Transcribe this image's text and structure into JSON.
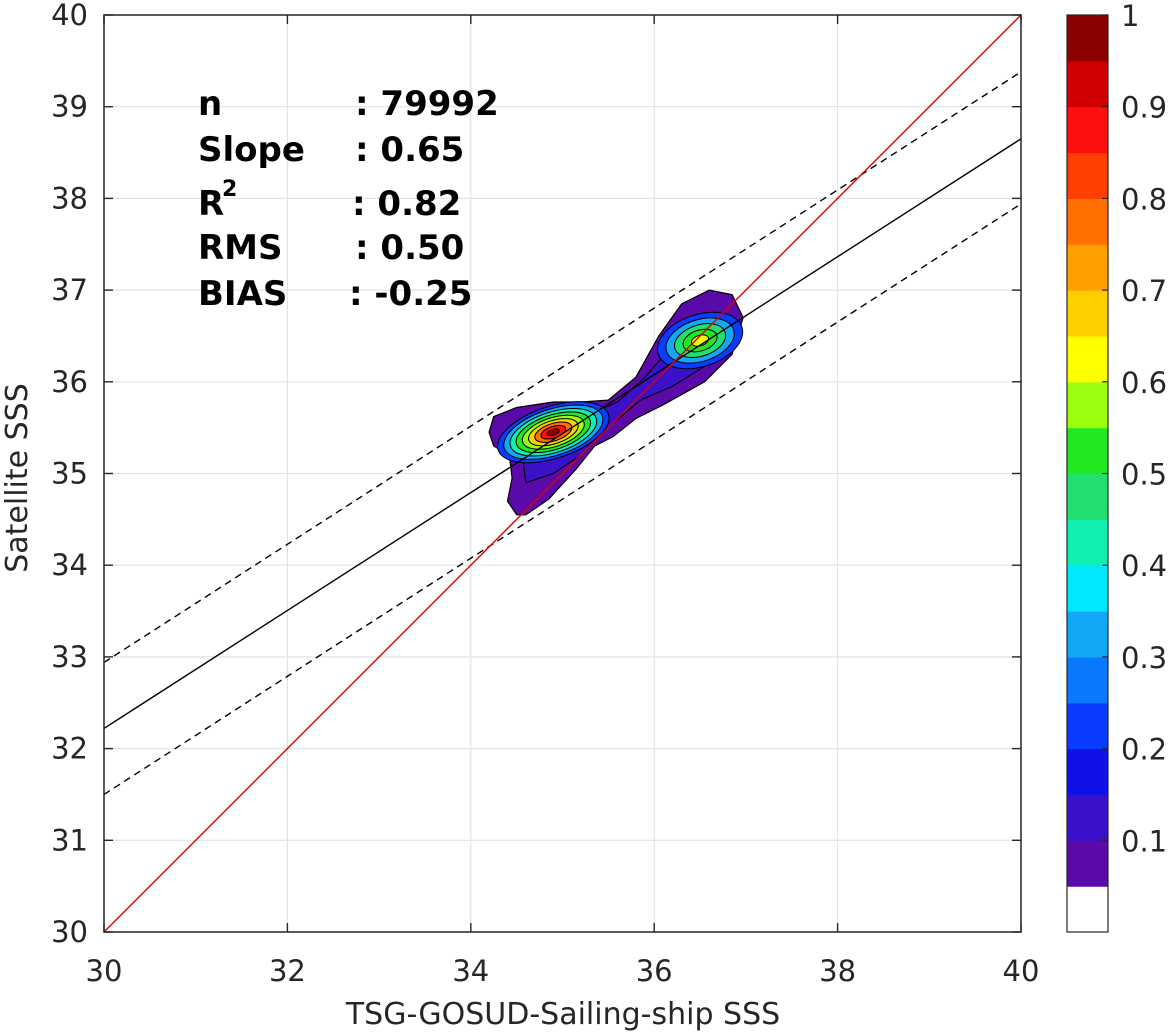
{
  "chart_data": {
    "type": "contour",
    "xlabel": "TSG-GOSUD-Sailing-ship SSS",
    "ylabel": "Satellite SSS",
    "xlim": [
      30,
      40
    ],
    "ylim": [
      30,
      40
    ],
    "xticks": [
      "30",
      "32",
      "34",
      "36",
      "38",
      "40"
    ],
    "yticks": [
      "30",
      "31",
      "32",
      "33",
      "34",
      "35",
      "36",
      "37",
      "38",
      "39",
      "40"
    ],
    "grid": true,
    "stats": {
      "n_label": "n",
      "n_value": ": 79992",
      "slope_label": "Slope",
      "slope_value": ": 0.65",
      "r2_label": "R",
      "r2_sup": "2",
      "r2_value": ": 0.82",
      "rms_label": "RMS",
      "rms_value": ": 0.50",
      "bias_label": "BIAS",
      "bias_value": ": -0.25"
    },
    "lines": {
      "identity": {
        "from": [
          30,
          30
        ],
        "to": [
          40,
          40
        ],
        "color": "#e00000",
        "style": "solid"
      },
      "regression": {
        "from": [
          30,
          32.22
        ],
        "to": [
          40,
          38.65
        ],
        "color": "#000000",
        "style": "solid"
      },
      "upper_bound": {
        "from": [
          30,
          32.94
        ],
        "to": [
          40,
          39.38
        ],
        "color": "#000000",
        "style": "dashed"
      },
      "lower_bound": {
        "from": [
          30,
          31.5
        ],
        "to": [
          40,
          37.94
        ],
        "color": "#000000",
        "style": "dashed"
      }
    },
    "density_peaks": [
      {
        "x": 34.9,
        "y": 35.45,
        "peak": 1.0
      },
      {
        "x": 36.5,
        "y": 36.45,
        "peak": 0.68
      }
    ],
    "colorbar": {
      "range": [
        0,
        1
      ],
      "ticks": [
        "0.1",
        "0.2",
        "0.3",
        "0.4",
        "0.5",
        "0.6",
        "0.7",
        "0.8",
        "0.9",
        "1"
      ],
      "colors": [
        "#ffffff",
        "#5a0aa8",
        "#3a10c8",
        "#1010e8",
        "#0a3cff",
        "#0a78ff",
        "#12a8f5",
        "#00e8ff",
        "#10f0b0",
        "#22e070",
        "#22e822",
        "#9cff10",
        "#ffff00",
        "#ffd000",
        "#ffa000",
        "#ff7000",
        "#ff4000",
        "#ff1010",
        "#d00000",
        "#8b0000"
      ]
    }
  }
}
